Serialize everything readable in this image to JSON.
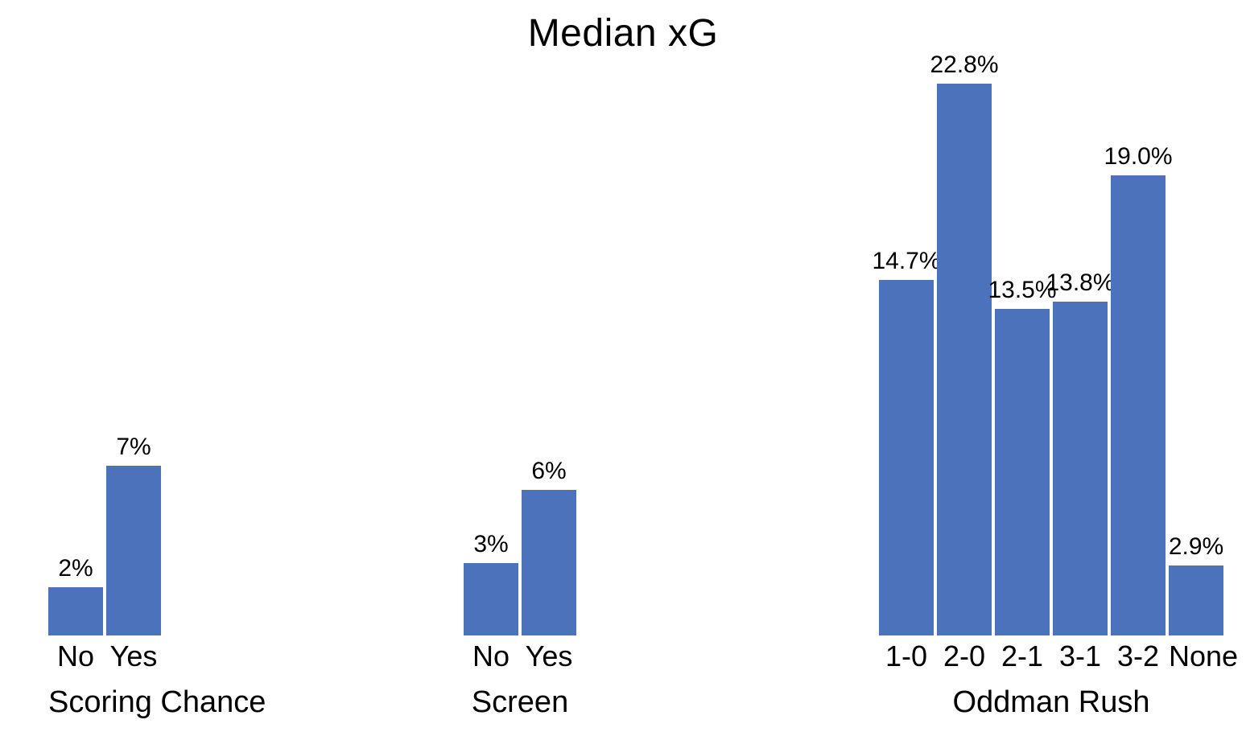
{
  "chart_data": {
    "type": "bar",
    "title": "Median xG",
    "bar_color": "#4C72BC",
    "grid": false,
    "legend": false,
    "value_axis_visible": false,
    "facets": [
      {
        "label": "Scoring Chance",
        "categories": [
          "No",
          "Yes"
        ],
        "values": [
          2,
          7
        ],
        "value_labels": [
          "2%",
          "7%"
        ]
      },
      {
        "label": "Screen",
        "categories": [
          "No",
          "Yes"
        ],
        "values": [
          3,
          6
        ],
        "value_labels": [
          "3%",
          "6%"
        ]
      },
      {
        "label": "Oddman Rush",
        "categories": [
          "1-0",
          "2-0",
          "2-1",
          "3-1",
          "3-2",
          "None"
        ],
        "values": [
          14.7,
          22.8,
          13.5,
          13.8,
          19.0,
          2.9
        ],
        "value_labels": [
          "14.7%",
          "22.8%",
          "13.5%",
          "13.8%",
          "19.0%",
          "2.9%"
        ]
      }
    ]
  }
}
